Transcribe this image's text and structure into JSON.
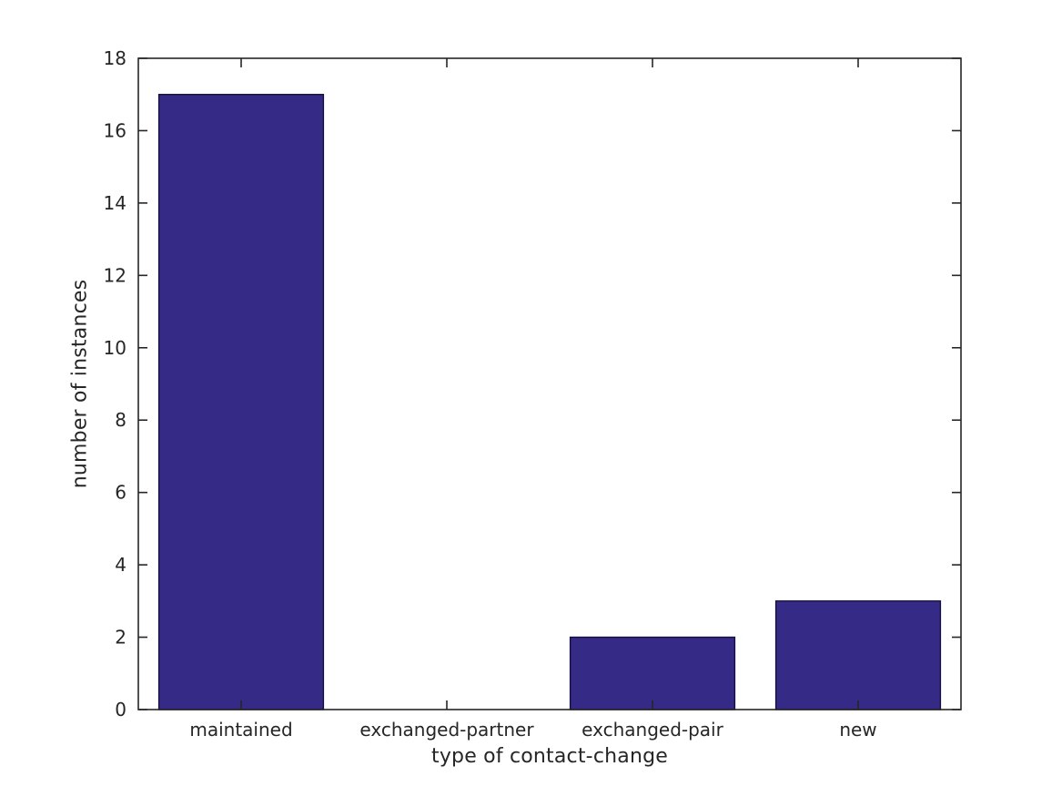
{
  "chart_data": {
    "type": "bar",
    "title": "",
    "xlabel": "type of contact-change",
    "ylabel": "number of instances",
    "categories": [
      "maintained",
      "exchanged-partner",
      "exchanged-pair",
      "new"
    ],
    "values": [
      17,
      0,
      2,
      3
    ],
    "ylim": [
      0,
      18
    ],
    "yticks": [
      0,
      2,
      4,
      6,
      8,
      10,
      12,
      14,
      16,
      18
    ],
    "bar_width_fraction": 0.8,
    "grid": false,
    "legend": false,
    "colors": {
      "bar_fill": "#352a85",
      "bar_edge": "#15113f",
      "axis": "#262626",
      "text": "#262626",
      "background": "#ffffff"
    }
  }
}
